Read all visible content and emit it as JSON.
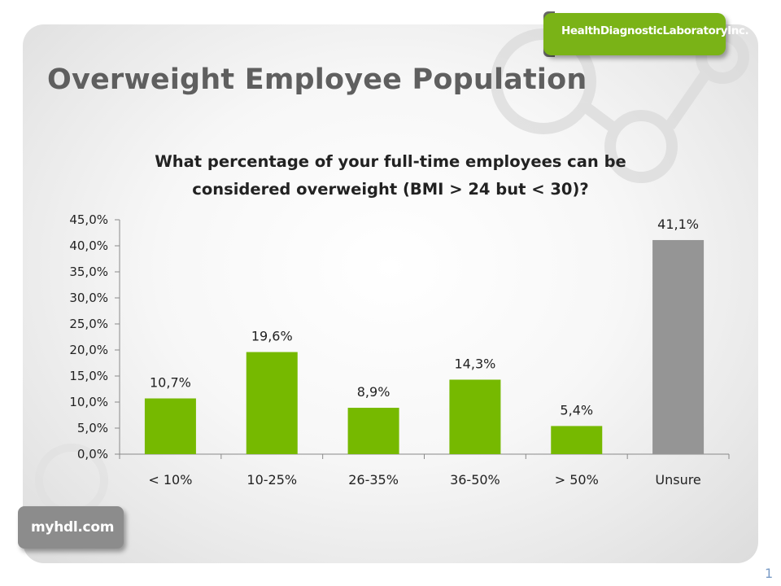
{
  "slide": {
    "title": "Overweight Employee Population",
    "page_number": "1"
  },
  "logos": {
    "hdl_text": "HealthDiagnosticLaboratoryInc.",
    "myhdl_text": "myhdl.com"
  },
  "colors": {
    "bar_green": "#76b900",
    "bar_gray": "#959595",
    "title_gray": "#5f5f5f"
  },
  "chart_data": {
    "type": "bar",
    "title": "What percentage of your full-time employees can be considered overweight (BMI > 24 but < 30)?",
    "categories": [
      "< 10%",
      "10-25%",
      "26-35%",
      "36-50%",
      "> 50%",
      "Unsure"
    ],
    "values": [
      10.7,
      19.6,
      8.9,
      14.3,
      5.4,
      41.1
    ],
    "data_labels": [
      "10,7%",
      "19,6%",
      "8,9%",
      "14,3%",
      "5,4%",
      "41,1%"
    ],
    "bar_colors": [
      "#76b900",
      "#76b900",
      "#76b900",
      "#76b900",
      "#76b900",
      "#959595"
    ],
    "ylim": [
      0,
      45
    ],
    "yticks": [
      0,
      5,
      10,
      15,
      20,
      25,
      30,
      35,
      40,
      45
    ],
    "ytick_labels": [
      "0,0%",
      "5,0%",
      "10,0%",
      "15,0%",
      "20,0%",
      "25,0%",
      "30,0%",
      "35,0%",
      "40,0%",
      "45,0%"
    ],
    "xlabel": "",
    "ylabel": "",
    "grid": false,
    "legend": "none"
  }
}
